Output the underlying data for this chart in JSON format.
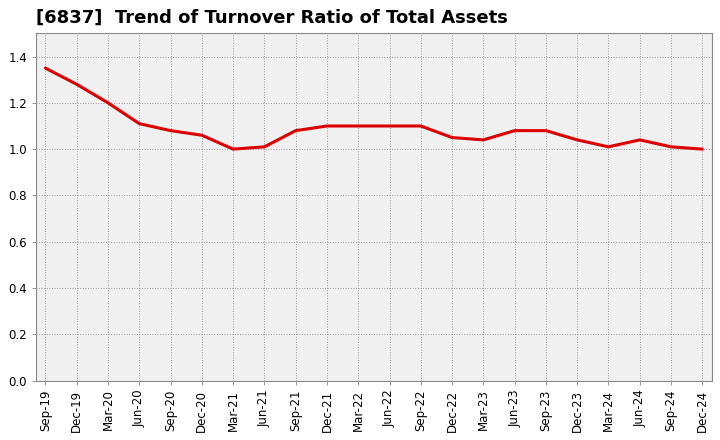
{
  "title": "[6837]  Trend of Turnover Ratio of Total Assets",
  "x_labels": [
    "Sep-19",
    "Dec-19",
    "Mar-20",
    "Jun-20",
    "Sep-20",
    "Dec-20",
    "Mar-21",
    "Jun-21",
    "Sep-21",
    "Dec-21",
    "Mar-22",
    "Jun-22",
    "Sep-22",
    "Dec-22",
    "Mar-23",
    "Jun-23",
    "Sep-23",
    "Dec-23",
    "Mar-24",
    "Jun-24",
    "Sep-24",
    "Dec-24"
  ],
  "y_values": [
    1.35,
    1.28,
    1.2,
    1.11,
    1.08,
    1.06,
    1.0,
    1.01,
    1.08,
    1.1,
    1.1,
    1.1,
    1.1,
    1.05,
    1.04,
    1.08,
    1.08,
    1.04,
    1.01,
    1.04,
    1.01,
    1.0
  ],
  "line_color": "#dd0000",
  "ylim": [
    0.0,
    1.5
  ],
  "yticks": [
    0.0,
    0.2,
    0.4,
    0.6,
    0.8,
    1.0,
    1.2,
    1.4
  ],
  "background_color": "#ffffff",
  "plot_bg_color": "#f0f0f0",
  "grid_color": "#999999",
  "title_fontsize": 13,
  "tick_fontsize": 8.5,
  "line_width": 2.2
}
